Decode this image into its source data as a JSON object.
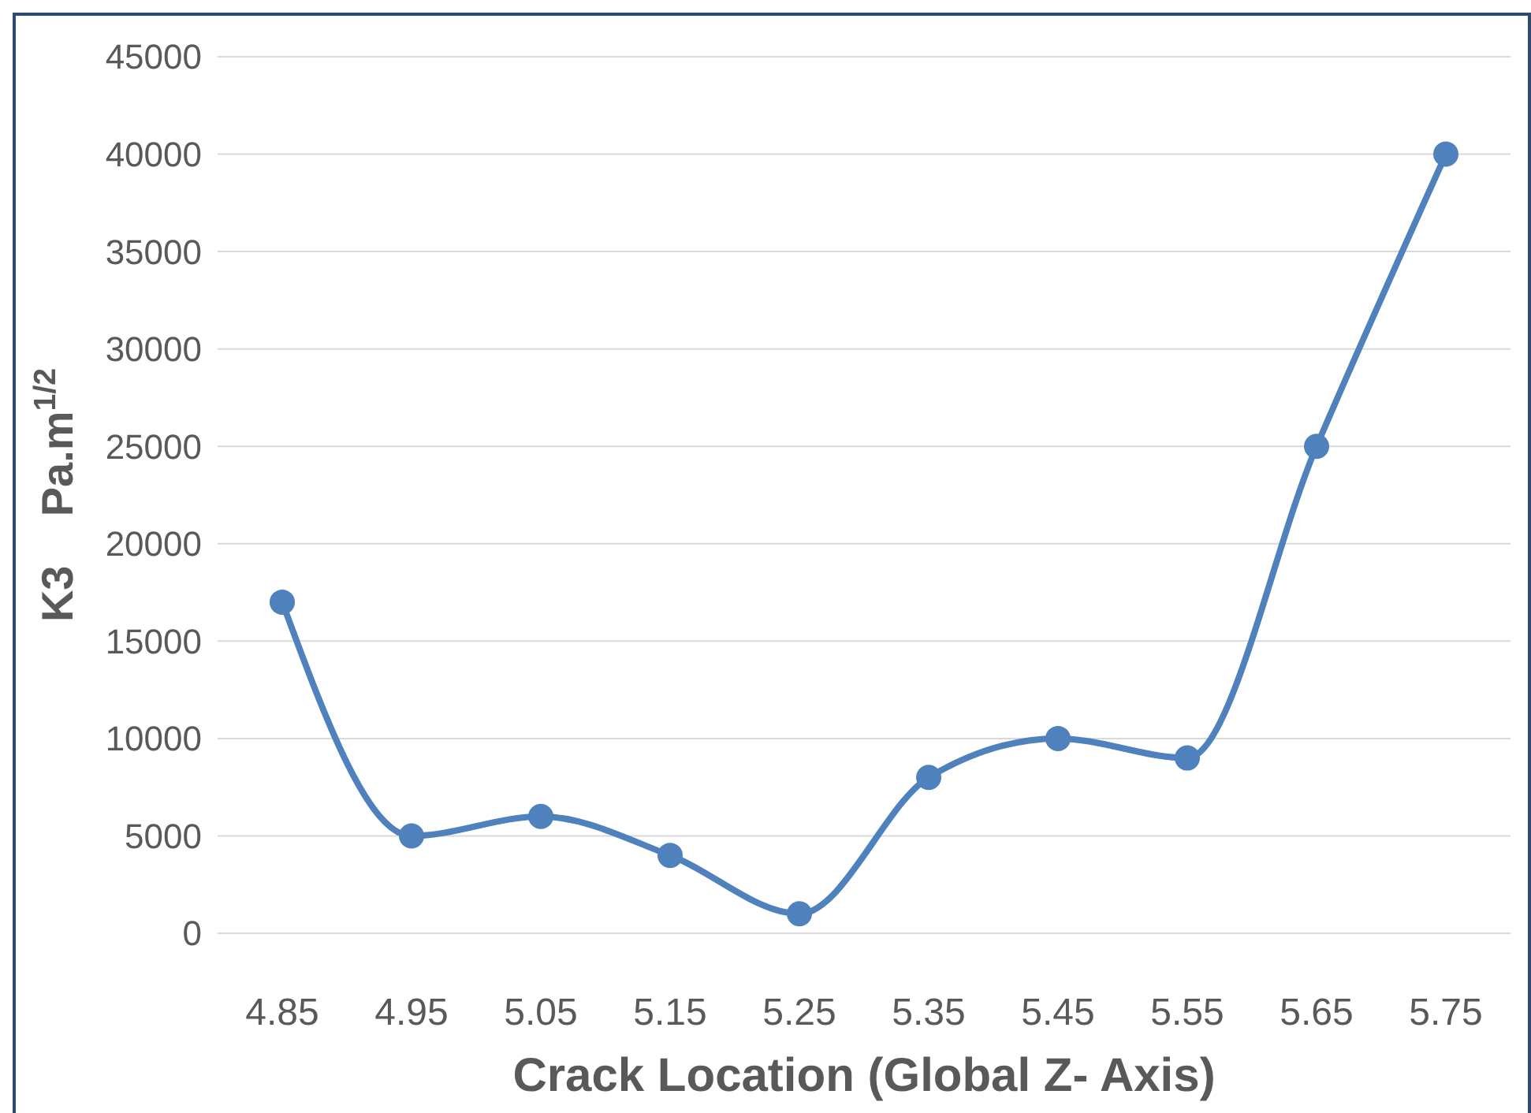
{
  "chart_data": {
    "type": "line",
    "xlabel": "Crack Location (Global Z- Axis)",
    "ylabel": "K3    Pa.m$^{1/2}$",
    "categories": [
      "4.85",
      "4.95",
      "5.05",
      "5.15",
      "5.25",
      "5.35",
      "5.45",
      "5.55",
      "5.65",
      "5.75"
    ],
    "series": [
      {
        "color": "#4f81bd",
        "values": [
          17000,
          5000,
          6000,
          4000,
          1000,
          8000,
          10000,
          9000,
          25000,
          40000
        ]
      }
    ],
    "ylim": [
      0,
      45000
    ],
    "yticks": [
      0,
      5000,
      10000,
      15000,
      20000,
      25000,
      30000,
      35000,
      40000,
      45000
    ],
    "grid": "y",
    "marker": "circle",
    "line_style": "solid"
  }
}
